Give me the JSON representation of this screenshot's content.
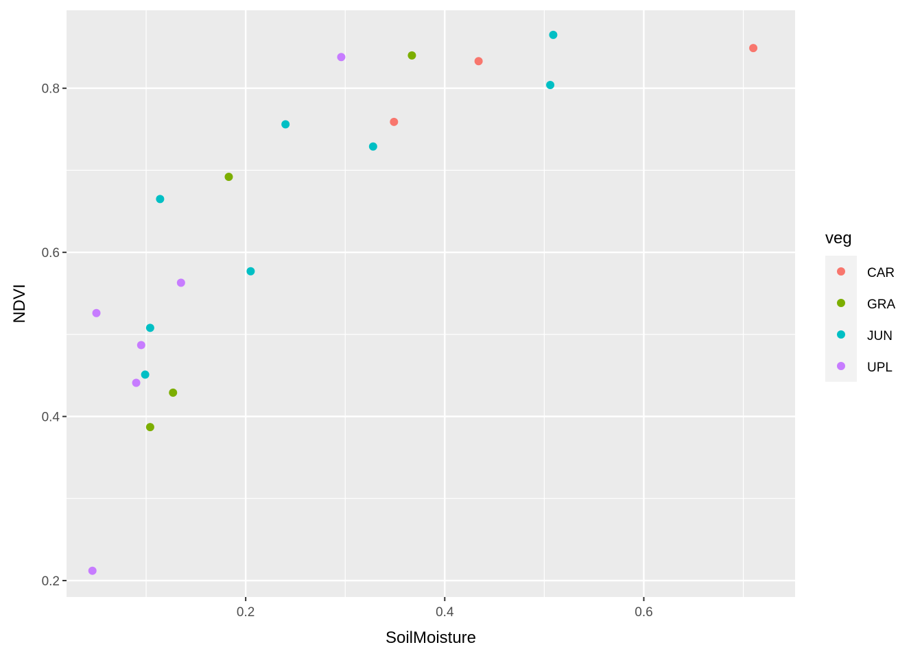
{
  "chart_data": {
    "type": "scatter",
    "title": "",
    "xlabel": "SoilMoisture",
    "ylabel": "NDVI",
    "xlim": [
      0.02,
      0.752
    ],
    "ylim": [
      0.18,
      0.895
    ],
    "x_ticks": [
      0.2,
      0.4,
      0.6
    ],
    "x_tick_labels": [
      "0.2",
      "0.4",
      "0.6"
    ],
    "x_minor_ticks": [
      0.1,
      0.3,
      0.5,
      0.7
    ],
    "y_ticks": [
      0.2,
      0.4,
      0.6,
      0.8
    ],
    "y_tick_labels": [
      "0.2",
      "0.4",
      "0.6",
      "0.8"
    ],
    "y_minor_ticks": [
      0.3,
      0.5,
      0.7
    ],
    "grid": true,
    "panel_background": "#ebebeb",
    "grid_color": "#ffffff",
    "legend": {
      "title": "veg",
      "position": "right"
    },
    "series": [
      {
        "name": "CAR",
        "color": "#F8766D",
        "points": [
          {
            "x": 0.349,
            "y": 0.759
          },
          {
            "x": 0.434,
            "y": 0.833
          },
          {
            "x": 0.71,
            "y": 0.849
          }
        ]
      },
      {
        "name": "GRA",
        "color": "#7CAE00",
        "points": [
          {
            "x": 0.367,
            "y": 0.84
          },
          {
            "x": 0.183,
            "y": 0.692
          },
          {
            "x": 0.127,
            "y": 0.429
          },
          {
            "x": 0.104,
            "y": 0.387
          }
        ]
      },
      {
        "name": "JUN",
        "color": "#00BFC4",
        "points": [
          {
            "x": 0.509,
            "y": 0.865
          },
          {
            "x": 0.506,
            "y": 0.804
          },
          {
            "x": 0.24,
            "y": 0.756
          },
          {
            "x": 0.328,
            "y": 0.729
          },
          {
            "x": 0.114,
            "y": 0.665
          },
          {
            "x": 0.205,
            "y": 0.577
          },
          {
            "x": 0.104,
            "y": 0.508
          },
          {
            "x": 0.099,
            "y": 0.451
          }
        ]
      },
      {
        "name": "UPL",
        "color": "#C77CFF",
        "points": [
          {
            "x": 0.296,
            "y": 0.838
          },
          {
            "x": 0.135,
            "y": 0.563
          },
          {
            "x": 0.05,
            "y": 0.526
          },
          {
            "x": 0.095,
            "y": 0.487
          },
          {
            "x": 0.09,
            "y": 0.441
          },
          {
            "x": 0.046,
            "y": 0.212
          }
        ]
      }
    ]
  }
}
